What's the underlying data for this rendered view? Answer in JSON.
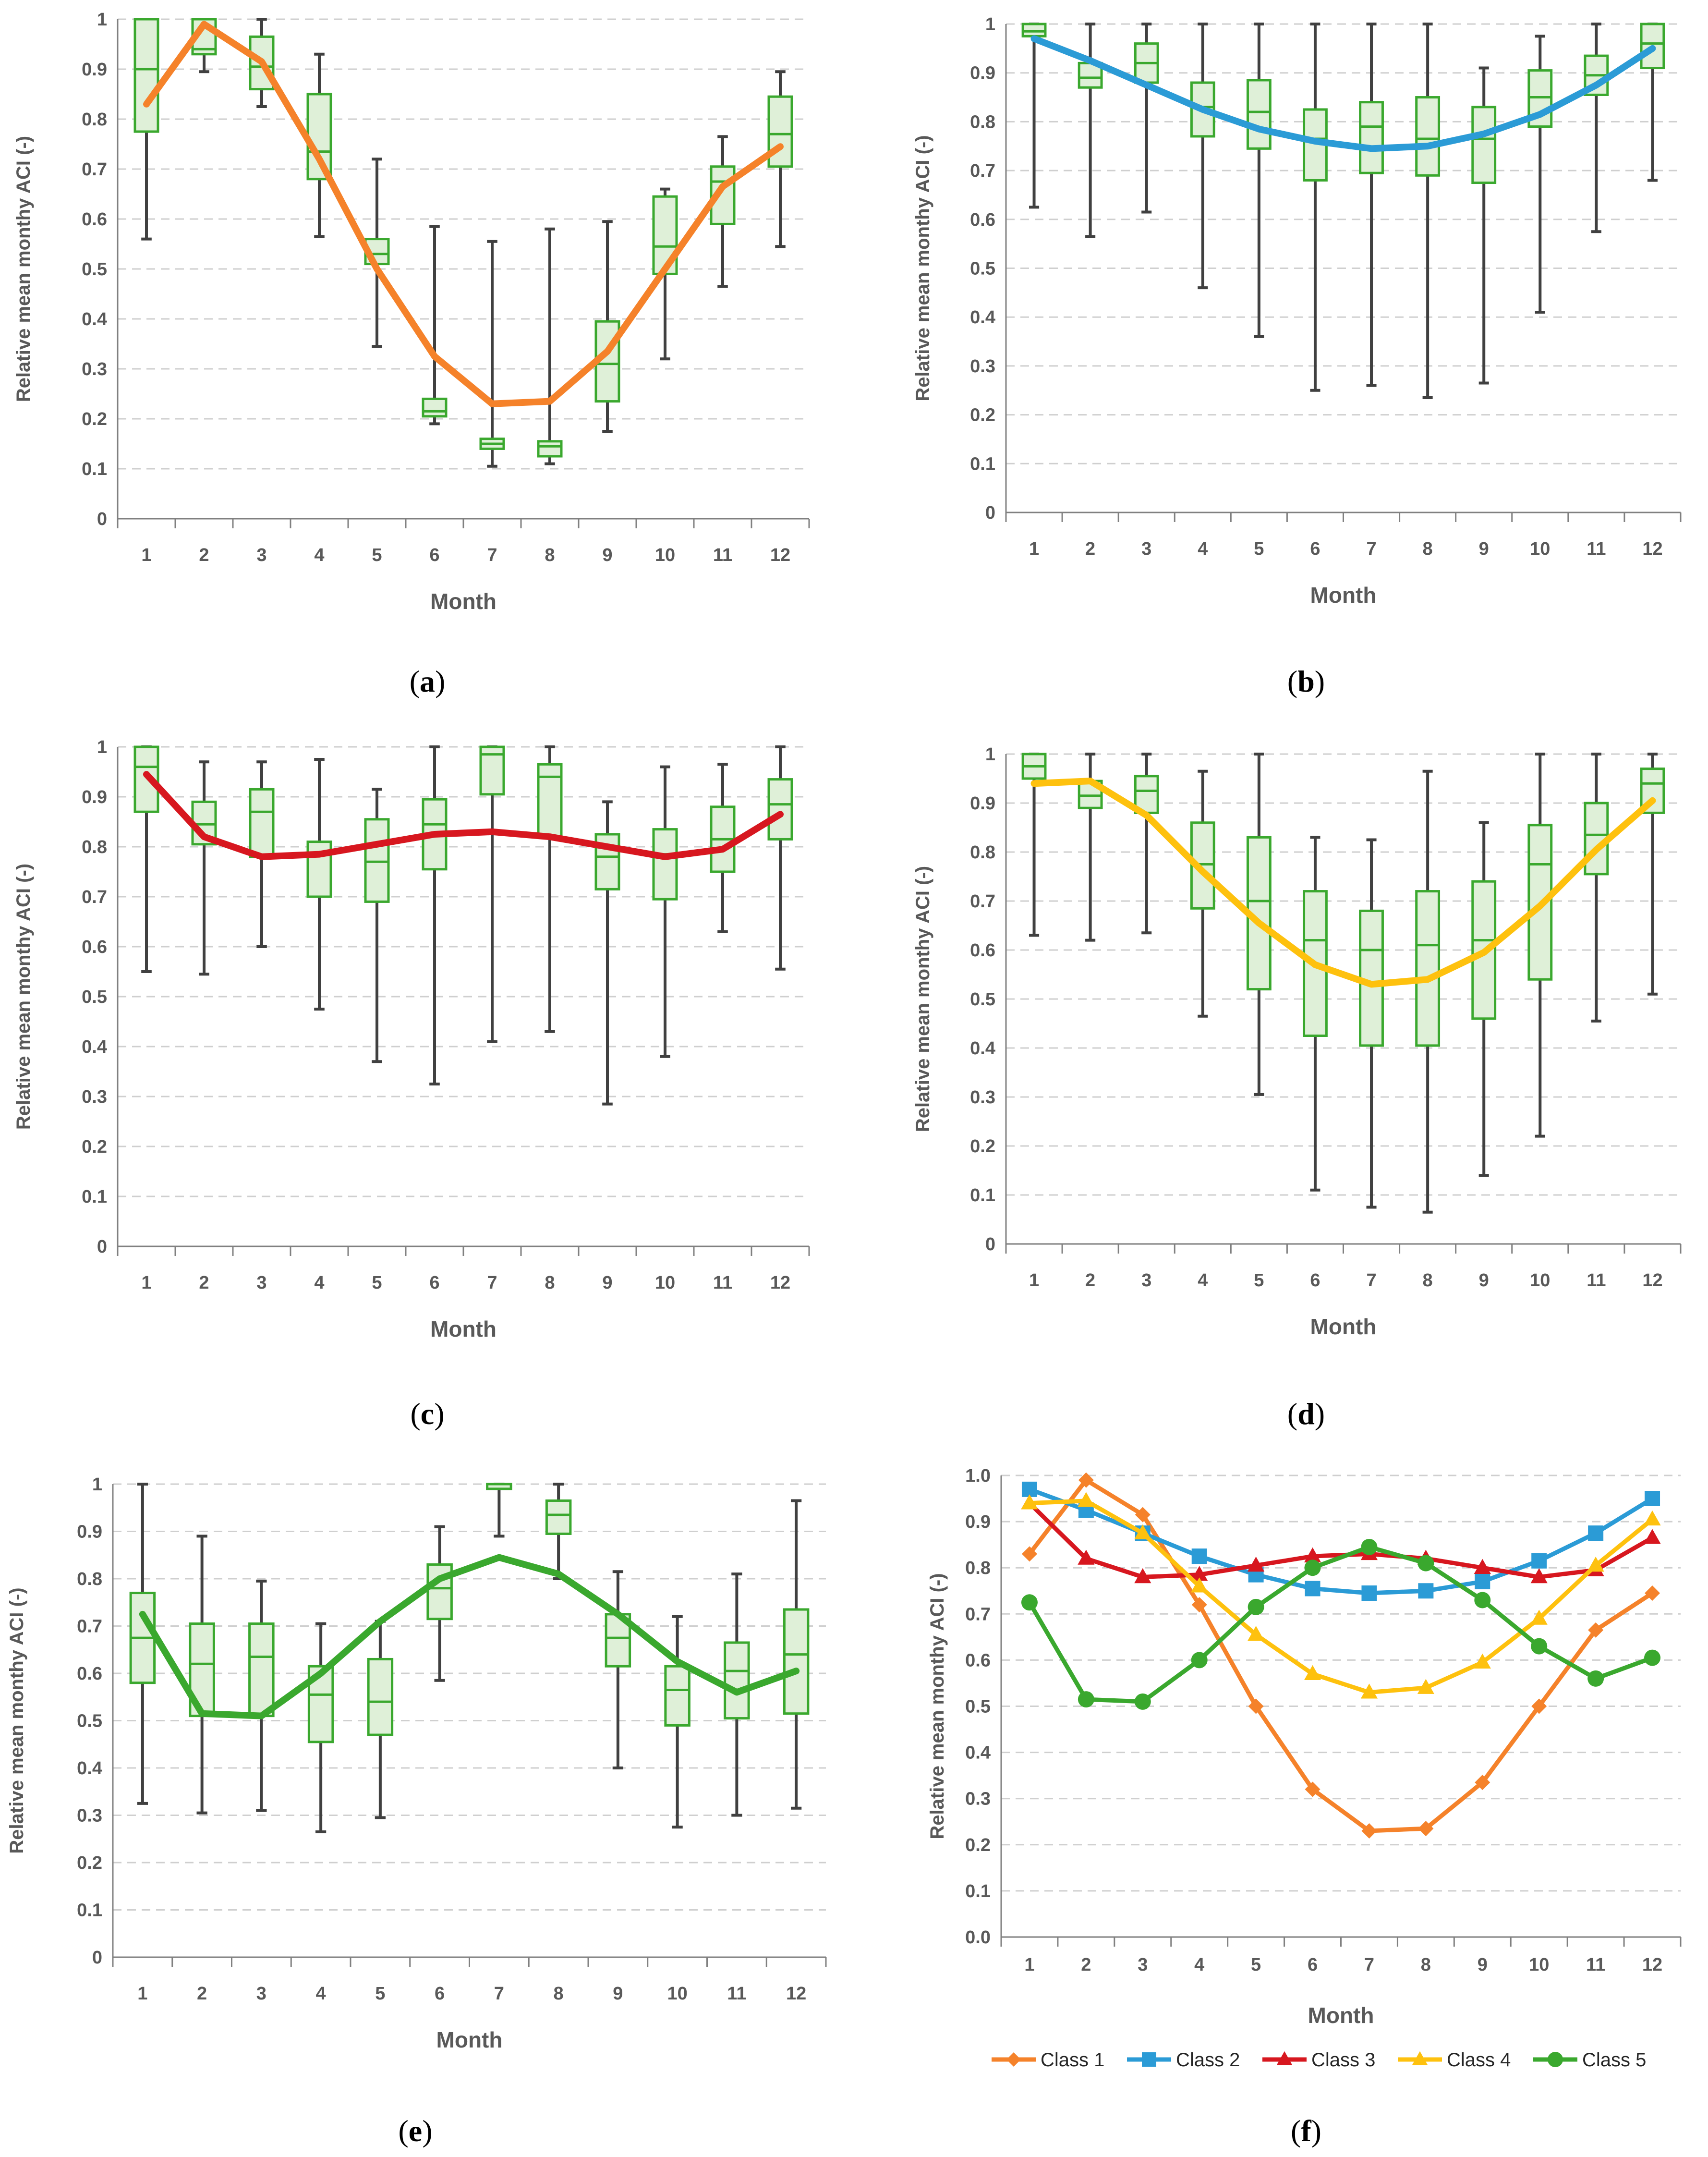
{
  "figure": {
    "panel_letters": [
      "a",
      "b",
      "c",
      "d",
      "e",
      "f"
    ]
  },
  "colors": {
    "box_fill": "#dff0d8",
    "box_stroke": "#3aa82e",
    "whisker": "#404040",
    "grid": "#cfcfcf",
    "axis": "#808080",
    "tick_text": "#595959"
  },
  "chart_data": [
    {
      "id": "a",
      "type": "box",
      "title": "",
      "xlabel": "Month",
      "ylabel": "Relative mean monthy ACI (-)",
      "categories": [
        "1",
        "2",
        "3",
        "4",
        "5",
        "6",
        "7",
        "8",
        "9",
        "10",
        "11",
        "12"
      ],
      "ylim": [
        0,
        1
      ],
      "yticks": [
        "0",
        "0.1",
        "0.2",
        "0.3",
        "0.4",
        "0.5",
        "0.6",
        "0.7",
        "0.8",
        "0.9",
        "1"
      ],
      "line_color": "#f5822a",
      "boxes": [
        {
          "min": 0.56,
          "q1": 0.775,
          "median": 0.9,
          "q3": 1.0,
          "max": 1.0
        },
        {
          "min": 0.895,
          "q1": 0.93,
          "median": 0.94,
          "q3": 1.0,
          "max": 1.0
        },
        {
          "min": 0.825,
          "q1": 0.86,
          "median": 0.905,
          "q3": 0.965,
          "max": 1.0
        },
        {
          "min": 0.565,
          "q1": 0.68,
          "median": 0.735,
          "q3": 0.85,
          "max": 0.93
        },
        {
          "min": 0.345,
          "q1": 0.51,
          "median": 0.53,
          "q3": 0.56,
          "max": 0.72
        },
        {
          "min": 0.19,
          "q1": 0.205,
          "median": 0.215,
          "q3": 0.24,
          "max": 0.585
        },
        {
          "min": 0.105,
          "q1": 0.14,
          "median": 0.15,
          "q3": 0.16,
          "max": 0.555
        },
        {
          "min": 0.11,
          "q1": 0.125,
          "median": 0.145,
          "q3": 0.155,
          "max": 0.58
        },
        {
          "min": 0.175,
          "q1": 0.235,
          "median": 0.31,
          "q3": 0.395,
          "max": 0.595
        },
        {
          "min": 0.32,
          "q1": 0.49,
          "median": 0.545,
          "q3": 0.645,
          "max": 0.66
        },
        {
          "min": 0.465,
          "q1": 0.59,
          "median": 0.675,
          "q3": 0.705,
          "max": 0.765
        },
        {
          "min": 0.545,
          "q1": 0.705,
          "median": 0.77,
          "q3": 0.845,
          "max": 0.895
        }
      ],
      "mean_line": [
        0.83,
        0.99,
        0.915,
        0.72,
        0.5,
        0.325,
        0.23,
        0.235,
        0.335,
        0.5,
        0.665,
        0.745
      ]
    },
    {
      "id": "b",
      "type": "box",
      "title": "",
      "xlabel": "Month",
      "ylabel": "Relative mean monthy ACI (-)",
      "categories": [
        "1",
        "2",
        "3",
        "4",
        "5",
        "6",
        "7",
        "8",
        "9",
        "10",
        "11",
        "12"
      ],
      "ylim": [
        0,
        1
      ],
      "yticks": [
        "0",
        "0.1",
        "0.2",
        "0.3",
        "0.4",
        "0.5",
        "0.6",
        "0.7",
        "0.8",
        "0.9",
        "1"
      ],
      "line_color": "#2b9bd6",
      "boxes": [
        {
          "min": 0.625,
          "q1": 0.975,
          "median": 0.985,
          "q3": 1.0,
          "max": 1.0
        },
        {
          "min": 0.565,
          "q1": 0.87,
          "median": 0.89,
          "q3": 0.92,
          "max": 1.0
        },
        {
          "min": 0.615,
          "q1": 0.88,
          "median": 0.92,
          "q3": 0.96,
          "max": 1.0
        },
        {
          "min": 0.46,
          "q1": 0.77,
          "median": 0.83,
          "q3": 0.88,
          "max": 1.0
        },
        {
          "min": 0.36,
          "q1": 0.745,
          "median": 0.82,
          "q3": 0.885,
          "max": 1.0
        },
        {
          "min": 0.25,
          "q1": 0.68,
          "median": 0.765,
          "q3": 0.825,
          "max": 1.0
        },
        {
          "min": 0.26,
          "q1": 0.695,
          "median": 0.79,
          "q3": 0.84,
          "max": 1.0
        },
        {
          "min": 0.235,
          "q1": 0.69,
          "median": 0.765,
          "q3": 0.85,
          "max": 1.0
        },
        {
          "min": 0.265,
          "q1": 0.675,
          "median": 0.765,
          "q3": 0.83,
          "max": 0.91
        },
        {
          "min": 0.41,
          "q1": 0.79,
          "median": 0.85,
          "q3": 0.905,
          "max": 0.975
        },
        {
          "min": 0.575,
          "q1": 0.855,
          "median": 0.895,
          "q3": 0.935,
          "max": 1.0
        },
        {
          "min": 0.68,
          "q1": 0.91,
          "median": 0.96,
          "q3": 1.0,
          "max": 1.0
        }
      ],
      "mean_line": [
        0.97,
        0.925,
        0.875,
        0.825,
        0.785,
        0.76,
        0.745,
        0.75,
        0.775,
        0.815,
        0.875,
        0.95
      ]
    },
    {
      "id": "c",
      "type": "box",
      "title": "",
      "xlabel": "Month",
      "ylabel": "Relative mean monthy ACI (-)",
      "categories": [
        "1",
        "2",
        "3",
        "4",
        "5",
        "6",
        "7",
        "8",
        "9",
        "10",
        "11",
        "12"
      ],
      "ylim": [
        0,
        1
      ],
      "yticks": [
        "0",
        "0.1",
        "0.2",
        "0.3",
        "0.4",
        "0.5",
        "0.6",
        "0.7",
        "0.8",
        "0.9",
        "1"
      ],
      "line_color": "#d7171f",
      "boxes": [
        {
          "min": 0.55,
          "q1": 0.87,
          "median": 0.96,
          "q3": 1.0,
          "max": 1.0
        },
        {
          "min": 0.545,
          "q1": 0.805,
          "median": 0.845,
          "q3": 0.89,
          "max": 0.97
        },
        {
          "min": 0.6,
          "q1": 0.78,
          "median": 0.87,
          "q3": 0.915,
          "max": 0.97
        },
        {
          "min": 0.475,
          "q1": 0.7,
          "median": 0.785,
          "q3": 0.81,
          "max": 0.975
        },
        {
          "min": 0.37,
          "q1": 0.69,
          "median": 0.77,
          "q3": 0.855,
          "max": 0.915
        },
        {
          "min": 0.325,
          "q1": 0.755,
          "median": 0.845,
          "q3": 0.895,
          "max": 1.0
        },
        {
          "min": 0.41,
          "q1": 0.905,
          "median": 0.985,
          "q3": 1.0,
          "max": 1.0
        },
        {
          "min": 0.43,
          "q1": 0.82,
          "median": 0.94,
          "q3": 0.965,
          "max": 1.0
        },
        {
          "min": 0.285,
          "q1": 0.715,
          "median": 0.78,
          "q3": 0.825,
          "max": 0.89
        },
        {
          "min": 0.38,
          "q1": 0.695,
          "median": 0.785,
          "q3": 0.835,
          "max": 0.96
        },
        {
          "min": 0.63,
          "q1": 0.75,
          "median": 0.815,
          "q3": 0.88,
          "max": 0.965
        },
        {
          "min": 0.555,
          "q1": 0.815,
          "median": 0.885,
          "q3": 0.935,
          "max": 1.0
        }
      ],
      "mean_line": [
        0.945,
        0.82,
        0.78,
        0.785,
        0.805,
        0.825,
        0.83,
        0.82,
        0.8,
        0.78,
        0.795,
        0.865
      ]
    },
    {
      "id": "d",
      "type": "box",
      "title": "",
      "xlabel": "Month",
      "ylabel": "Relative mean monthy ACI (-)",
      "categories": [
        "1",
        "2",
        "3",
        "4",
        "5",
        "6",
        "7",
        "8",
        "9",
        "10",
        "11",
        "12"
      ],
      "ylim": [
        0,
        1
      ],
      "yticks": [
        "0",
        "0.1",
        "0.2",
        "0.3",
        "0.4",
        "0.5",
        "0.6",
        "0.7",
        "0.8",
        "0.9",
        "1"
      ],
      "line_color": "#fec10e",
      "boxes": [
        {
          "min": 0.63,
          "q1": 0.95,
          "median": 0.975,
          "q3": 1.0,
          "max": 1.0
        },
        {
          "min": 0.62,
          "q1": 0.89,
          "median": 0.915,
          "q3": 0.945,
          "max": 1.0
        },
        {
          "min": 0.635,
          "q1": 0.88,
          "median": 0.925,
          "q3": 0.955,
          "max": 1.0
        },
        {
          "min": 0.465,
          "q1": 0.685,
          "median": 0.775,
          "q3": 0.86,
          "max": 0.965
        },
        {
          "min": 0.305,
          "q1": 0.52,
          "median": 0.7,
          "q3": 0.83,
          "max": 1.0
        },
        {
          "min": 0.11,
          "q1": 0.425,
          "median": 0.62,
          "q3": 0.72,
          "max": 0.83
        },
        {
          "min": 0.075,
          "q1": 0.405,
          "median": 0.6,
          "q3": 0.68,
          "max": 0.825
        },
        {
          "min": 0.065,
          "q1": 0.405,
          "median": 0.61,
          "q3": 0.72,
          "max": 0.965
        },
        {
          "min": 0.14,
          "q1": 0.46,
          "median": 0.62,
          "q3": 0.74,
          "max": 0.86
        },
        {
          "min": 0.22,
          "q1": 0.54,
          "median": 0.775,
          "q3": 0.855,
          "max": 1.0
        },
        {
          "min": 0.455,
          "q1": 0.755,
          "median": 0.835,
          "q3": 0.9,
          "max": 1.0
        },
        {
          "min": 0.51,
          "q1": 0.88,
          "median": 0.94,
          "q3": 0.97,
          "max": 1.0
        }
      ],
      "mean_line": [
        0.94,
        0.945,
        0.875,
        0.76,
        0.655,
        0.57,
        0.53,
        0.54,
        0.595,
        0.69,
        0.805,
        0.905
      ]
    },
    {
      "id": "e",
      "type": "box",
      "title": "",
      "xlabel": "Month",
      "ylabel": "Relative mean monthy ACI (-)",
      "categories": [
        "1",
        "2",
        "3",
        "4",
        "5",
        "6",
        "7",
        "8",
        "9",
        "10",
        "11",
        "12"
      ],
      "ylim": [
        0,
        1
      ],
      "yticks": [
        "0",
        "0.1",
        "0.2",
        "0.3",
        "0.4",
        "0.5",
        "0.6",
        "0.7",
        "0.8",
        "0.9",
        "1"
      ],
      "line_color": "#3aa82e",
      "boxes": [
        {
          "min": 0.325,
          "q1": 0.58,
          "median": 0.675,
          "q3": 0.77,
          "max": 1.0
        },
        {
          "min": 0.305,
          "q1": 0.51,
          "median": 0.62,
          "q3": 0.705,
          "max": 0.89
        },
        {
          "min": 0.31,
          "q1": 0.51,
          "median": 0.635,
          "q3": 0.705,
          "max": 0.795
        },
        {
          "min": 0.265,
          "q1": 0.455,
          "median": 0.555,
          "q3": 0.615,
          "max": 0.705
        },
        {
          "min": 0.295,
          "q1": 0.47,
          "median": 0.54,
          "q3": 0.63,
          "max": 0.71
        },
        {
          "min": 0.585,
          "q1": 0.715,
          "median": 0.78,
          "q3": 0.83,
          "max": 0.91
        },
        {
          "min": 0.89,
          "q1": 0.99,
          "median": 1.0,
          "q3": 1.0,
          "max": 1.0
        },
        {
          "min": 0.8,
          "q1": 0.895,
          "median": 0.935,
          "q3": 0.965,
          "max": 1.0
        },
        {
          "min": 0.4,
          "q1": 0.615,
          "median": 0.675,
          "q3": 0.725,
          "max": 0.815
        },
        {
          "min": 0.275,
          "q1": 0.49,
          "median": 0.565,
          "q3": 0.615,
          "max": 0.72
        },
        {
          "min": 0.3,
          "q1": 0.505,
          "median": 0.605,
          "q3": 0.665,
          "max": 0.81
        },
        {
          "min": 0.315,
          "q1": 0.515,
          "median": 0.64,
          "q3": 0.735,
          "max": 0.965
        }
      ],
      "mean_line": [
        0.725,
        0.515,
        0.51,
        0.6,
        0.71,
        0.8,
        0.845,
        0.81,
        0.725,
        0.625,
        0.56,
        0.605
      ]
    },
    {
      "id": "f",
      "type": "line",
      "title": "",
      "xlabel": "Month",
      "ylabel": "Relative mean monthy ACI (-)",
      "categories": [
        "1",
        "2",
        "3",
        "4",
        "5",
        "6",
        "7",
        "8",
        "9",
        "10",
        "11",
        "12"
      ],
      "ylim": [
        0,
        1
      ],
      "yticks": [
        "0.0",
        "0.1",
        "0.2",
        "0.3",
        "0.4",
        "0.5",
        "0.6",
        "0.7",
        "0.8",
        "0.9",
        "1.0"
      ],
      "legend_position": "bottom",
      "series": [
        {
          "name": "Class 1",
          "color": "#f5822a",
          "marker": "diamond",
          "values": [
            0.83,
            0.99,
            0.915,
            0.72,
            0.5,
            0.32,
            0.23,
            0.235,
            0.335,
            0.5,
            0.665,
            0.745
          ]
        },
        {
          "name": "Class 2",
          "color": "#2b9bd6",
          "marker": "square",
          "values": [
            0.97,
            0.925,
            0.875,
            0.825,
            0.785,
            0.755,
            0.745,
            0.75,
            0.77,
            0.815,
            0.875,
            0.95
          ]
        },
        {
          "name": "Class 3",
          "color": "#d7171f",
          "marker": "triangle",
          "values": [
            0.94,
            0.82,
            0.78,
            0.785,
            0.805,
            0.825,
            0.83,
            0.82,
            0.8,
            0.78,
            0.795,
            0.865
          ]
        },
        {
          "name": "Class 4",
          "color": "#fec10e",
          "marker": "triangle",
          "values": [
            0.94,
            0.945,
            0.875,
            0.76,
            0.655,
            0.57,
            0.53,
            0.54,
            0.595,
            0.69,
            0.805,
            0.905
          ]
        },
        {
          "name": "Class 5",
          "color": "#3aa82e",
          "marker": "circle",
          "values": [
            0.725,
            0.515,
            0.51,
            0.6,
            0.715,
            0.8,
            0.845,
            0.81,
            0.73,
            0.63,
            0.56,
            0.605
          ]
        }
      ]
    }
  ]
}
